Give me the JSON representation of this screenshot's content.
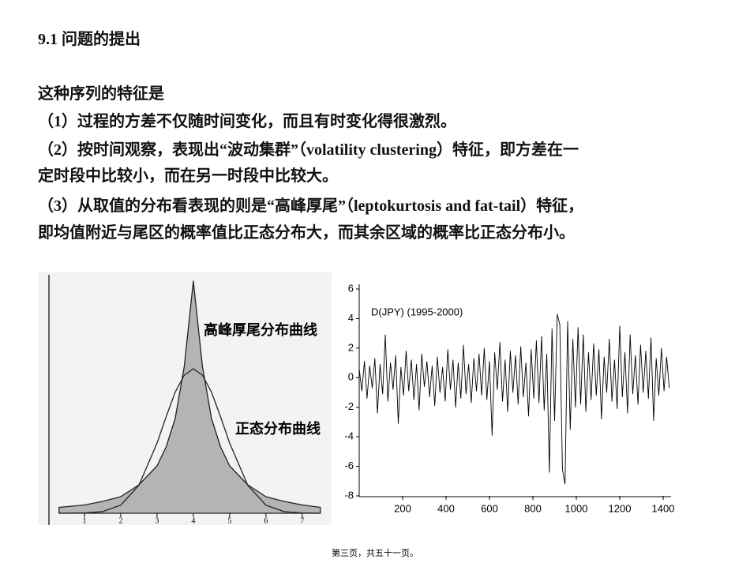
{
  "heading": "9.1  问题的提出",
  "lines": [
    "这种序列的特征是",
    "（1）过程的方差不仅随时间变化，而且有时变化得很激烈。",
    "（2）按时间观察，表现出“波动集群”（volatility clustering）特征，即方差在一",
    "定时段中比较小，而在另一时段中比较大。",
    "（3）从取值的分布看表现的则是“高峰厚尾”（leptokurtosis and fat-tail）特征，",
    "即均值附近与尾区的概率值比正态分布大，而其余区域的概率比正态分布小。"
  ],
  "chart_data": [
    {
      "type": "line",
      "x": [
        0.3,
        1,
        1.5,
        2,
        2.5,
        3,
        3.25,
        3.5,
        3.75,
        4,
        4.25,
        4.5,
        4.75,
        5,
        5.5,
        6,
        6.5,
        7,
        7.5
      ],
      "series": [
        {
          "name": "高峰厚尾分布曲线",
          "color": "#222222",
          "fill": "#b4b4b4",
          "values": [
            0.25,
            0.35,
            0.5,
            0.7,
            1.2,
            2.0,
            2.8,
            4.0,
            6.2,
            9.8,
            6.2,
            4.0,
            2.8,
            2.0,
            1.2,
            0.7,
            0.5,
            0.35,
            0.25
          ]
        },
        {
          "name": "正态分布曲线",
          "color": "#222222",
          "values": [
            0,
            0.01,
            0.07,
            0.34,
            1.18,
            2.96,
            4.07,
            5.11,
            5.83,
            6.1,
            5.83,
            5.11,
            4.07,
            2.96,
            1.18,
            0.34,
            0.07,
            0.01,
            0
          ]
        }
      ],
      "xlim": [
        0,
        7.7
      ],
      "ylim": [
        0,
        10
      ],
      "xticks": [
        1,
        2,
        3,
        4,
        5,
        6,
        7
      ]
    },
    {
      "type": "line",
      "title": "D(JPY) (1995-2000)",
      "x": [
        0,
        12,
        24,
        36,
        48,
        60,
        72,
        84,
        96,
        108,
        120,
        132,
        144,
        156,
        168,
        180,
        192,
        204,
        216,
        228,
        240,
        252,
        264,
        276,
        288,
        300,
        312,
        324,
        336,
        348,
        360,
        372,
        384,
        396,
        408,
        420,
        432,
        444,
        456,
        468,
        480,
        492,
        504,
        516,
        528,
        540,
        552,
        564,
        576,
        588,
        600,
        612,
        624,
        636,
        648,
        660,
        672,
        684,
        696,
        708,
        720,
        732,
        744,
        756,
        768,
        780,
        792,
        804,
        816,
        828,
        840,
        852,
        864,
        876,
        888,
        900,
        912,
        924,
        936,
        948,
        960,
        972,
        984,
        996,
        1008,
        1020,
        1032,
        1044,
        1056,
        1068,
        1080,
        1092,
        1104,
        1116,
        1128,
        1140,
        1152,
        1164,
        1176,
        1188,
        1200,
        1212,
        1224,
        1236,
        1248,
        1260,
        1272,
        1284,
        1296,
        1308,
        1320,
        1332,
        1344,
        1356,
        1368,
        1380,
        1392,
        1404,
        1416,
        1428
      ],
      "series": [
        {
          "name": "D(JPY)",
          "color": "#000000",
          "values": [
            0.6,
            -0.9,
            1.1,
            -1.4,
            0.8,
            -0.7,
            1.3,
            -2.4,
            0.9,
            -1.1,
            2.9,
            -1.6,
            1.0,
            -0.8,
            1.5,
            -3.1,
            0.7,
            -1.2,
            1.8,
            -0.9,
            1.2,
            -1.5,
            0.9,
            -2.2,
            1.6,
            -0.6,
            1.1,
            -1.3,
            0.8,
            -1.9,
            1.4,
            -1.0,
            0.7,
            -1.6,
            1.9,
            -0.8,
            1.2,
            -2.0,
            1.0,
            -1.4,
            2.2,
            -1.1,
            0.9,
            -1.7,
            1.3,
            -0.9,
            1.6,
            -1.2,
            2.0,
            -1.5,
            1.1,
            -3.9,
            1.7,
            -0.8,
            2.4,
            -1.6,
            1.2,
            -2.3,
            1.8,
            -1.0,
            1.5,
            -1.8,
            2.1,
            -1.3,
            1.0,
            -2.6,
            1.9,
            -1.4,
            2.5,
            -1.7,
            2.8,
            -2.2,
            1.6,
            -6.4,
            3.3,
            -2.9,
            4.3,
            3.6,
            -6.2,
            -7.2,
            3.8,
            -3.5,
            2.6,
            -2.0,
            3.4,
            -1.8,
            2.9,
            -2.3,
            1.7,
            -1.5,
            2.3,
            -1.2,
            1.9,
            -2.8,
            1.4,
            -1.0,
            2.6,
            -1.6,
            1.2,
            -2.1,
            3.5,
            -1.3,
            1.7,
            -2.4,
            2.9,
            -1.1,
            1.5,
            -1.8,
            2.2,
            -1.0,
            1.8,
            -1.4,
            2.7,
            -2.9,
            1.3,
            -1.2,
            2.0,
            -0.9,
            1.4,
            -0.7
          ]
        }
      ],
      "xlim": [
        0,
        1440
      ],
      "ylim": [
        -8,
        6
      ],
      "xticks": [
        200,
        400,
        600,
        800,
        1000,
        1200,
        1400
      ],
      "yticks": [
        -8,
        -6,
        -4,
        -2,
        0,
        2,
        4,
        6
      ]
    }
  ],
  "footer": "第三页，共五十一页。"
}
